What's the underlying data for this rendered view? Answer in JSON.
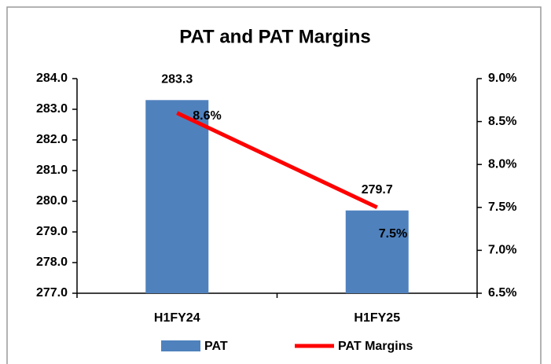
{
  "chart_data": {
    "type": "combo",
    "title": "PAT and PAT Margins",
    "categories": [
      "H1FY24",
      "H1FY25"
    ],
    "series": [
      {
        "name": "PAT",
        "type": "bar",
        "color": "#4f81bd",
        "values": [
          283.3,
          279.7
        ]
      },
      {
        "name": "PAT Margins",
        "type": "line",
        "axis": "y2",
        "color": "#ff0000",
        "values": [
          8.6,
          7.5
        ],
        "value_labels": [
          "8.6%",
          "7.5%"
        ]
      }
    ],
    "ylim": [
      277,
      284
    ],
    "yticks": [
      {
        "value": 277,
        "label": "277.0"
      },
      {
        "value": 278,
        "label": "278.0"
      },
      {
        "value": 279,
        "label": "279.0"
      },
      {
        "value": 280,
        "label": "280.0"
      },
      {
        "value": 281,
        "label": "281.0"
      },
      {
        "value": 282,
        "label": "282.0"
      },
      {
        "value": 283,
        "label": "283.0"
      },
      {
        "value": 284,
        "label": "284.0"
      }
    ],
    "y2lim": [
      6.5,
      9.0
    ],
    "y2ticks": [
      {
        "value": 6.5,
        "label": "6.5%"
      },
      {
        "value": 7.0,
        "label": "7.0%"
      },
      {
        "value": 7.5,
        "label": "7.5%"
      },
      {
        "value": 8.0,
        "label": "8.0%"
      },
      {
        "value": 8.5,
        "label": "8.5%"
      },
      {
        "value": 9.0,
        "label": "9.0%"
      }
    ],
    "legend": "bottom"
  }
}
